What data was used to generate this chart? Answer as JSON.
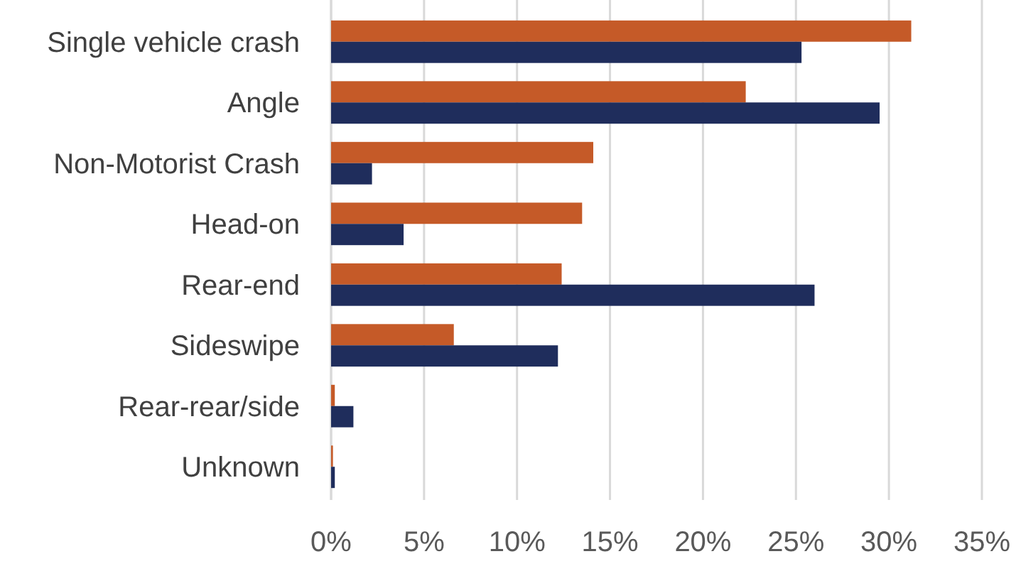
{
  "chart_data": {
    "type": "bar",
    "orientation": "horizontal",
    "categories": [
      "Single vehicle crash",
      "Angle",
      "Non-Motorist Crash",
      "Head-on",
      "Rear-end",
      "Sideswipe",
      "Rear-rear/side",
      "Unknown"
    ],
    "series": [
      {
        "color": "#c55a28",
        "values": [
          31.2,
          22.3,
          14.1,
          13.5,
          12.4,
          6.6,
          0.2,
          0.1
        ]
      },
      {
        "color": "#1f2d5c",
        "values": [
          25.3,
          29.5,
          2.2,
          3.9,
          26.0,
          12.2,
          1.2,
          0.2
        ]
      }
    ],
    "xlim": [
      0,
      35
    ],
    "xticks": [
      {
        "value": 0,
        "label": "0%"
      },
      {
        "value": 5,
        "label": "5%"
      },
      {
        "value": 10,
        "label": "10%"
      },
      {
        "value": 15,
        "label": "15%"
      },
      {
        "value": 20,
        "label": "20%"
      },
      {
        "value": 25,
        "label": "25%"
      },
      {
        "value": 30,
        "label": "30%"
      },
      {
        "value": 35,
        "label": "35%"
      }
    ],
    "grid": "x"
  }
}
